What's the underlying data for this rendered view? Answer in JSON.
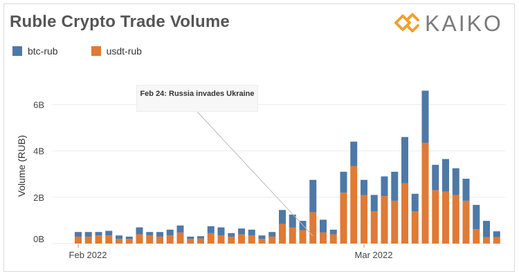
{
  "header": {
    "title": "Ruble Crypto Trade Volume",
    "logo_text": "KAIKO"
  },
  "colors": {
    "btc": "#4e79a7",
    "usdt": "#e07a35",
    "logo": "#f0a030",
    "logo_text": "#7a7a7a"
  },
  "chart_data": {
    "type": "bar",
    "stacked": true,
    "ylabel": "Volume (RUB)",
    "yticks": [
      "0B",
      "2B",
      "4B",
      "6B"
    ],
    "ytick_values": [
      0,
      2,
      4,
      6
    ],
    "ylim": [
      0,
      7
    ],
    "xtick_labels": [
      "Feb 2022",
      "Mar 2022"
    ],
    "xtick_index": [
      0,
      28
    ],
    "grid": true,
    "legend_position": "top-left",
    "series": [
      {
        "name": "btc-rub",
        "color": "#4e79a7",
        "values": [
          0.2,
          0.2,
          0.15,
          0.2,
          0.15,
          0.1,
          0.3,
          0.15,
          0.2,
          0.25,
          0.3,
          0.1,
          0.1,
          0.3,
          0.35,
          0.15,
          0.25,
          0.25,
          0.15,
          0.2,
          0.6,
          0.55,
          0.4,
          1.4,
          0.55,
          0.2,
          0.9,
          1.05,
          0.65,
          0.7,
          0.85,
          1.25,
          2.0,
          0.75,
          2.25,
          1.1,
          1.4,
          1.15,
          0.95,
          1.05,
          0.7,
          0.25
        ]
      },
      {
        "name": "usdt-rub",
        "color": "#e07a35",
        "values": [
          0.3,
          0.3,
          0.35,
          0.35,
          0.2,
          0.2,
          0.4,
          0.35,
          0.3,
          0.35,
          0.48,
          0.2,
          0.22,
          0.45,
          0.35,
          0.3,
          0.4,
          0.35,
          0.2,
          0.3,
          0.85,
          0.7,
          0.58,
          1.35,
          0.48,
          0.4,
          2.2,
          3.35,
          2.1,
          1.4,
          2.05,
          1.85,
          2.6,
          1.4,
          4.35,
          2.3,
          2.25,
          2.1,
          1.85,
          0.62,
          0.28,
          0.28
        ]
      }
    ],
    "annotation": {
      "text": "Feb 24: Russia invades Ukraine",
      "bar_index": 23
    }
  }
}
